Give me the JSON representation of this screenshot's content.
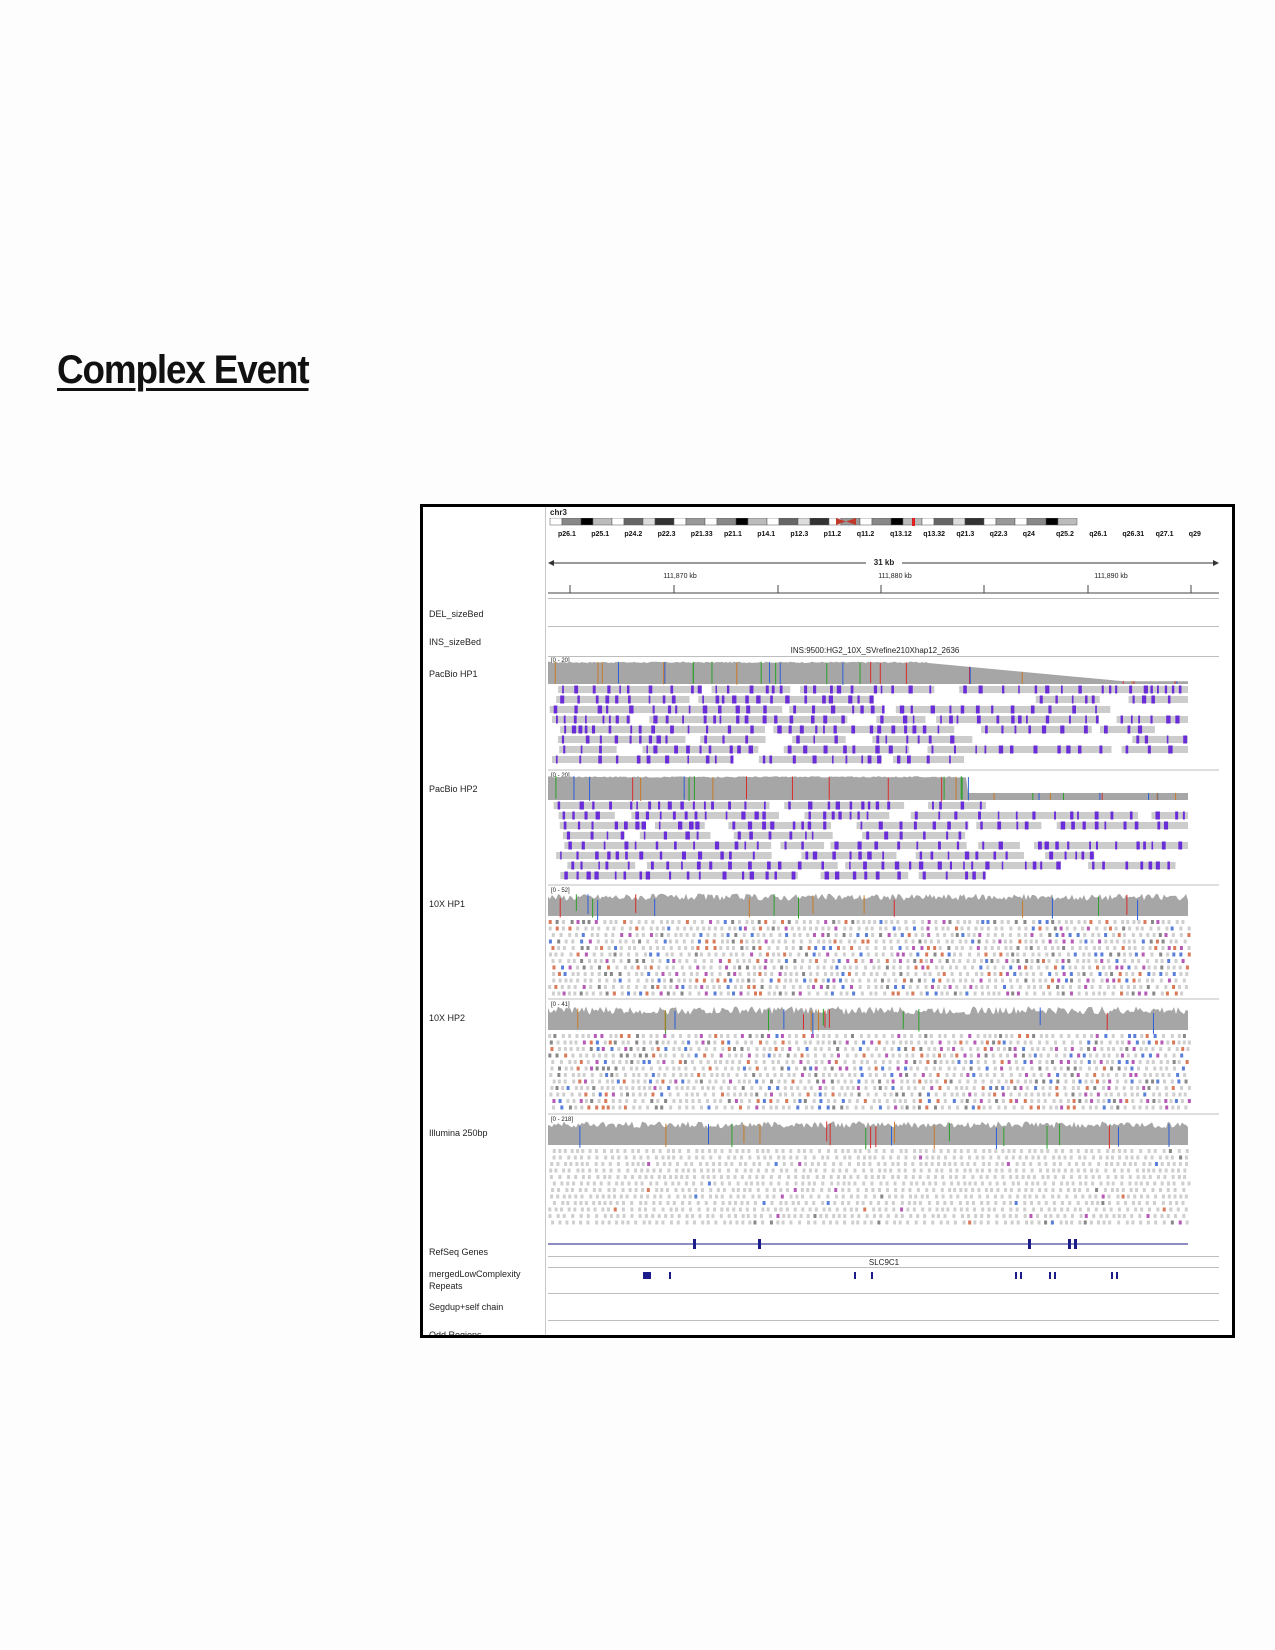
{
  "document": {
    "title": "Complex Event"
  },
  "igv": {
    "chromosome": "chr3",
    "cytobands": [
      "p26.1",
      "p25.1",
      "p24.2",
      "p22.3",
      "p21.33",
      "p21.1",
      "p14.1",
      "p12.3",
      "p11.2",
      "q11.2",
      "q13.12",
      "q13.32",
      "q21.3",
      "q22.3",
      "q24",
      "q25.2",
      "q26.1",
      "q26.31",
      "q27.1",
      "q29"
    ],
    "span_label": "31 kb",
    "ruler_ticks": [
      "111,870 kb",
      "111,880 kb",
      "111,890 kb"
    ],
    "tracks": {
      "del": {
        "name": "DEL_sizeBed"
      },
      "ins": {
        "name": "INS_sizeBed",
        "feature_label": "INS:9500:HG2_10X_SVrefine210Xhap12_2636"
      },
      "pacbio_hp1": {
        "name": "PacBio HP1",
        "range": "[0 - 20]"
      },
      "pacbio_hp2": {
        "name": "PacBio HP2",
        "range": "[0 - 20]"
      },
      "tenx_hp1": {
        "name": "10X HP1",
        "range": "[0 - 52]"
      },
      "tenx_hp2": {
        "name": "10X HP2",
        "range": "[0 - 41]"
      },
      "illumina": {
        "name": "Illumina 250bp",
        "range": "[0 - 218]"
      },
      "refseq": {
        "name": "RefSeq Genes",
        "gene": "SLC9C1"
      },
      "low_complexity": {
        "name": "mergedLowComplexity Repeats"
      },
      "segdup": {
        "name": "Segdup+self chain"
      },
      "odd": {
        "name": "Odd Regions"
      }
    }
  },
  "colors": {
    "coverage": "#a6a6a6",
    "read": "#cccccc",
    "insertion": "#6a2bd9",
    "feature": "#1b1b8a",
    "mismatch_a": "#2ba02b",
    "mismatch_c": "#2b5ed9",
    "mismatch_g": "#c87a28",
    "mismatch_t": "#d92b2b"
  }
}
